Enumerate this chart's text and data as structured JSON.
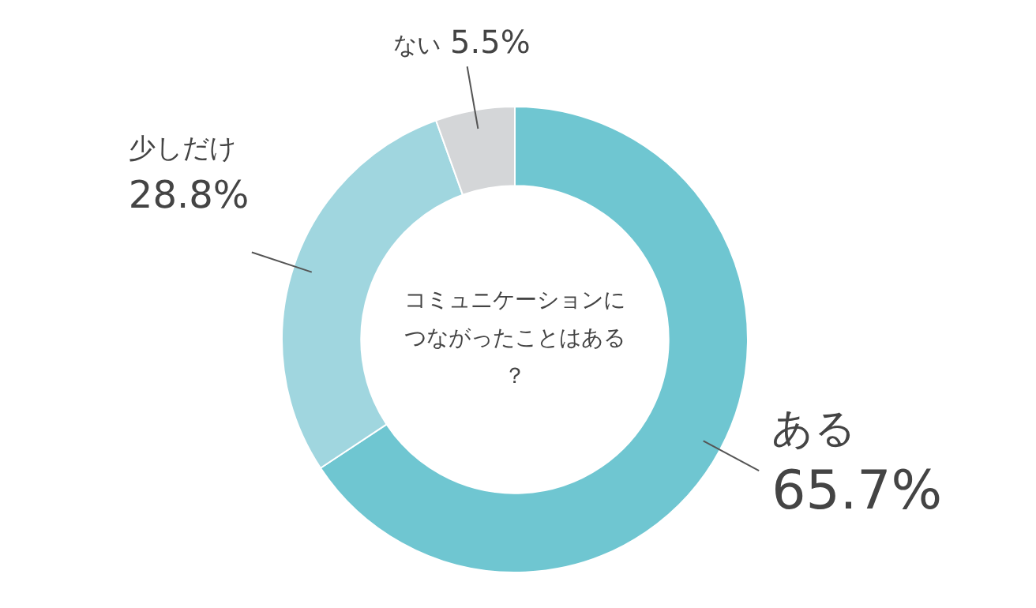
{
  "chart_data": {
    "type": "donut",
    "title": "コミュニケーションにつながったことはある？",
    "categories": [
      "ある",
      "少しだけ",
      "ない"
    ],
    "values": [
      65.7,
      28.8,
      5.5
    ],
    "value_labels": [
      "65.7%",
      "28.8%",
      "5.5%"
    ],
    "colors": [
      "#6fc6d1",
      "#a0d6df",
      "#d4d6d8"
    ]
  }
}
